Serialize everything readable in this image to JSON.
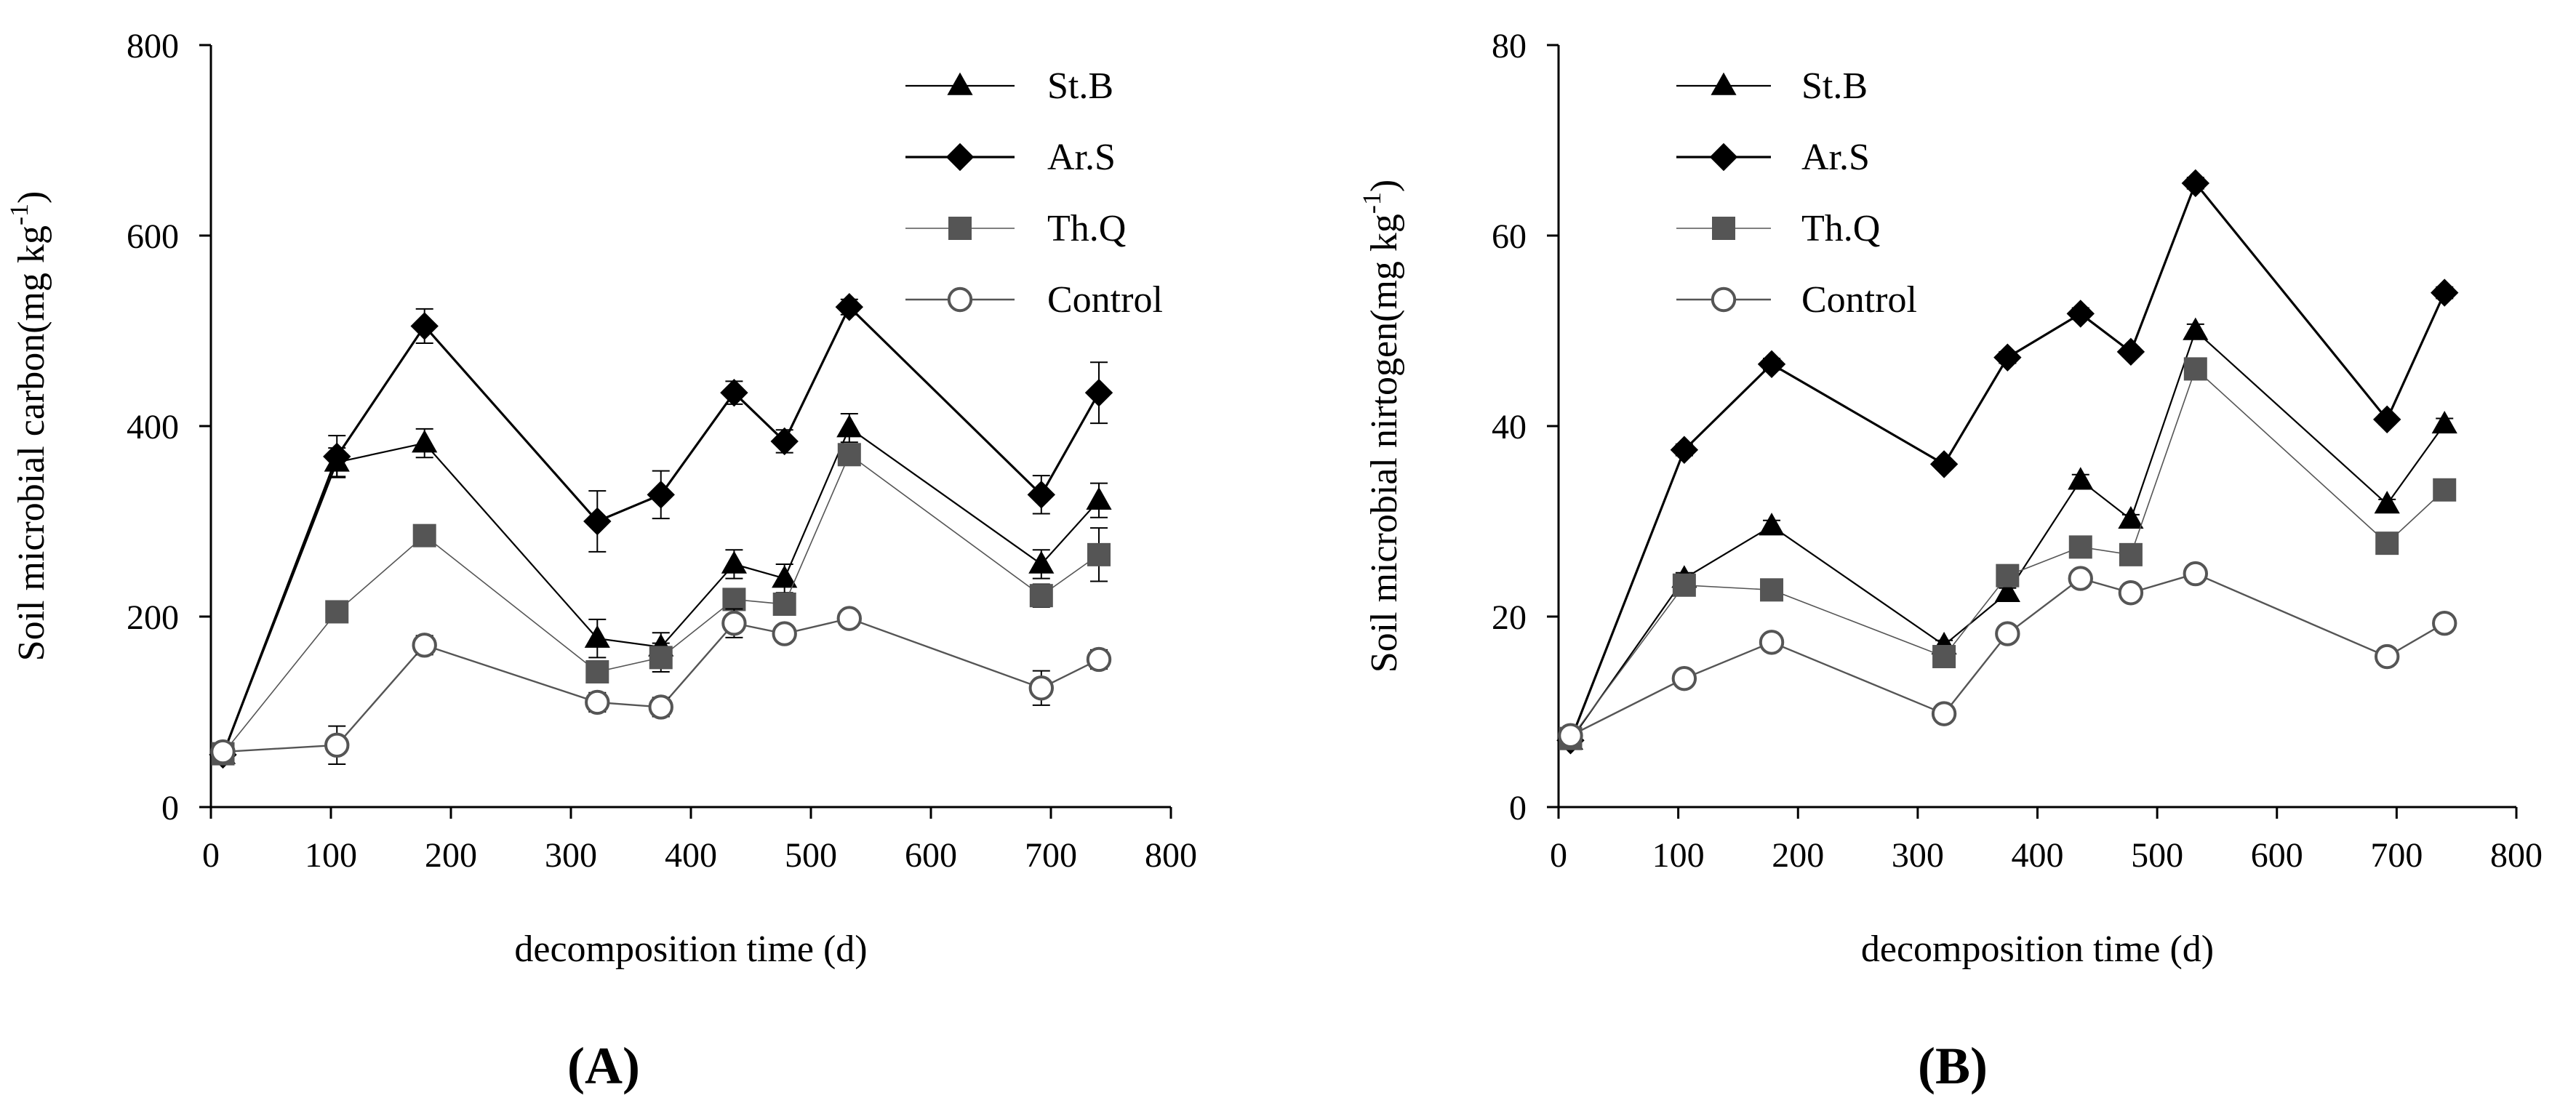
{
  "colors": {
    "st_b": "#000000",
    "ar_s": "#000000",
    "th_q": "#555555",
    "control": "#555555",
    "axis": "#000000"
  },
  "chart_data": [
    {
      "type": "line",
      "panel_label": "(A)",
      "xlabel": "decomposition time (d)",
      "ylabel": "Soil microbial carbon(mg kg",
      "ylabel_sup": "-1",
      "ylabel_close": ")",
      "xlim": [
        0,
        800
      ],
      "ylim": [
        0,
        800
      ],
      "xticks": [
        0,
        100,
        200,
        300,
        400,
        500,
        600,
        700,
        800
      ],
      "yticks": [
        0,
        200,
        400,
        600,
        800
      ],
      "xtick_labels": [
        "0",
        "100",
        "200",
        "300",
        "400",
        "500",
        "600",
        "700",
        "800"
      ],
      "ytick_labels": [
        "0",
        "200",
        "400",
        "600",
        "800"
      ],
      "legend_position": "top-right",
      "x": [
        10,
        105,
        178,
        322,
        375,
        436,
        478,
        532,
        692,
        740
      ],
      "series": [
        {
          "name": "St.B",
          "marker": "triangle",
          "values": [
            55,
            362,
            382,
            177,
            168,
            255,
            240,
            398,
            255,
            322
          ],
          "errors": [
            5,
            15,
            15,
            20,
            15,
            15,
            15,
            15,
            15,
            18
          ]
        },
        {
          "name": "Ar.S",
          "marker": "diamond",
          "values": [
            55,
            368,
            505,
            300,
            328,
            435,
            384,
            525,
            328,
            435
          ],
          "errors": [
            5,
            22,
            18,
            32,
            25,
            12,
            12,
            8,
            20,
            32
          ]
        },
        {
          "name": "Th.Q",
          "marker": "square",
          "values": [
            56,
            205,
            285,
            142,
            157,
            218,
            213,
            370,
            222,
            265
          ],
          "errors": [
            5,
            10,
            10,
            10,
            15,
            10,
            10,
            10,
            12,
            28
          ]
        },
        {
          "name": "Control",
          "marker": "circle",
          "values": [
            58,
            65,
            170,
            110,
            105,
            193,
            182,
            198,
            125,
            155
          ],
          "errors": [
            5,
            20,
            10,
            10,
            10,
            15,
            8,
            8,
            18,
            10
          ]
        }
      ]
    },
    {
      "type": "line",
      "panel_label": "(B)",
      "xlabel": "decomposition time (d)",
      "ylabel": "Soil microbial nirtogen(mg kg",
      "ylabel_sup": "-1",
      "ylabel_close": ")",
      "xlim": [
        0,
        800
      ],
      "ylim": [
        0,
        80
      ],
      "xticks": [
        0,
        100,
        200,
        300,
        400,
        500,
        600,
        700,
        800
      ],
      "yticks": [
        0,
        20,
        40,
        60,
        80
      ],
      "xtick_labels": [
        "0",
        "100",
        "200",
        "300",
        "400",
        "500",
        "600",
        "700",
        "800"
      ],
      "ytick_labels": [
        "0",
        "20",
        "40",
        "60",
        "80"
      ],
      "legend_position": "top-left",
      "x": [
        10,
        105,
        178,
        322,
        375,
        436,
        478,
        532,
        692,
        740
      ],
      "series": [
        {
          "name": "St.B",
          "marker": "triangle",
          "values": [
            7,
            24,
            29.5,
            17,
            22.5,
            34.3,
            30.2,
            50,
            31.8,
            40.2
          ],
          "errors": [
            0.3,
            0.6,
            0.6,
            0.5,
            0.5,
            0.6,
            0.5,
            0.7,
            0.5,
            0.6
          ]
        },
        {
          "name": "Ar.S",
          "marker": "diamond",
          "values": [
            7,
            37.5,
            46.5,
            36,
            47.2,
            51.8,
            47.8,
            65.5,
            40.7,
            54
          ],
          "errors": [
            0.3,
            0.6,
            0.6,
            0.5,
            0.6,
            0.6,
            0.5,
            0.6,
            0.5,
            0.6
          ]
        },
        {
          "name": "Th.Q",
          "marker": "square",
          "values": [
            7.2,
            23.3,
            22.8,
            15.8,
            24.3,
            27.3,
            26.5,
            46,
            27.7,
            33.3
          ],
          "errors": [
            0.3,
            0.6,
            0.5,
            0.5,
            0.5,
            0.6,
            0.5,
            0.6,
            0.5,
            0.6
          ]
        },
        {
          "name": "Control",
          "marker": "circle",
          "values": [
            7.5,
            13.5,
            17.3,
            9.8,
            18.2,
            24,
            22.5,
            24.5,
            15.8,
            19.3
          ],
          "errors": [
            0.3,
            0.5,
            0.5,
            0.4,
            0.5,
            0.5,
            0.5,
            0.5,
            0.5,
            0.5
          ]
        }
      ]
    }
  ]
}
